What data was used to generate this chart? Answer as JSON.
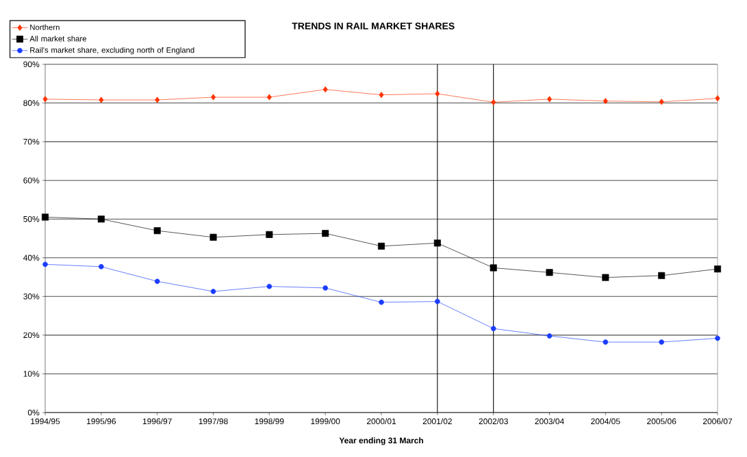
{
  "chart_data": {
    "type": "line",
    "title": "TRENDS IN RAIL MARKET SHARES",
    "xlabel": "Year ending 31 March",
    "categories": [
      "1994/95",
      "1995/96",
      "1996/97",
      "1997/98",
      "1998/99",
      "1999/00",
      "2000/01",
      "2001/02",
      "2002/03",
      "2003/04",
      "2004/05",
      "2005/06",
      "2006/07"
    ],
    "series": [
      {
        "name": "Northern",
        "color": "#ff3300",
        "marker": "diamond",
        "values": [
          81.0,
          80.8,
          80.8,
          81.5,
          81.5,
          83.5,
          82.1,
          82.4,
          80.2,
          81.0,
          80.5,
          80.3,
          81.2
        ]
      },
      {
        "name": "All market share",
        "color": "#000000",
        "marker": "square",
        "values": [
          50.5,
          50.0,
          47.0,
          45.3,
          46.0,
          46.3,
          43.0,
          43.8,
          37.4,
          36.2,
          34.9,
          35.4,
          37.1
        ]
      },
      {
        "name": "Rail's market share, excluding north of England",
        "color": "#1a3cff",
        "marker": "circle",
        "values": [
          38.3,
          37.7,
          33.9,
          31.3,
          32.6,
          32.2,
          28.5,
          28.7,
          21.7,
          19.8,
          18.2,
          18.2,
          19.2
        ]
      }
    ],
    "ylim": [
      0,
      90
    ],
    "yticks": [
      {
        "value": 0,
        "label": "0%"
      },
      {
        "value": 10,
        "label": "10%"
      },
      {
        "value": 20,
        "label": "20%"
      },
      {
        "value": 30,
        "label": "30%"
      },
      {
        "value": 40,
        "label": "40%"
      },
      {
        "value": 50,
        "label": "50%"
      },
      {
        "value": 60,
        "label": "60%"
      },
      {
        "value": 70,
        "label": "70%"
      },
      {
        "value": 80,
        "label": "80%"
      },
      {
        "value": 90,
        "label": "90%"
      }
    ],
    "ref_lines": [
      {
        "axis": "x",
        "value": "2001/02",
        "color": "#000000"
      },
      {
        "axis": "x",
        "value": "2002/03",
        "color": "#000000"
      }
    ],
    "grid": "y",
    "legend": "top left",
    "line_style": "solid"
  }
}
